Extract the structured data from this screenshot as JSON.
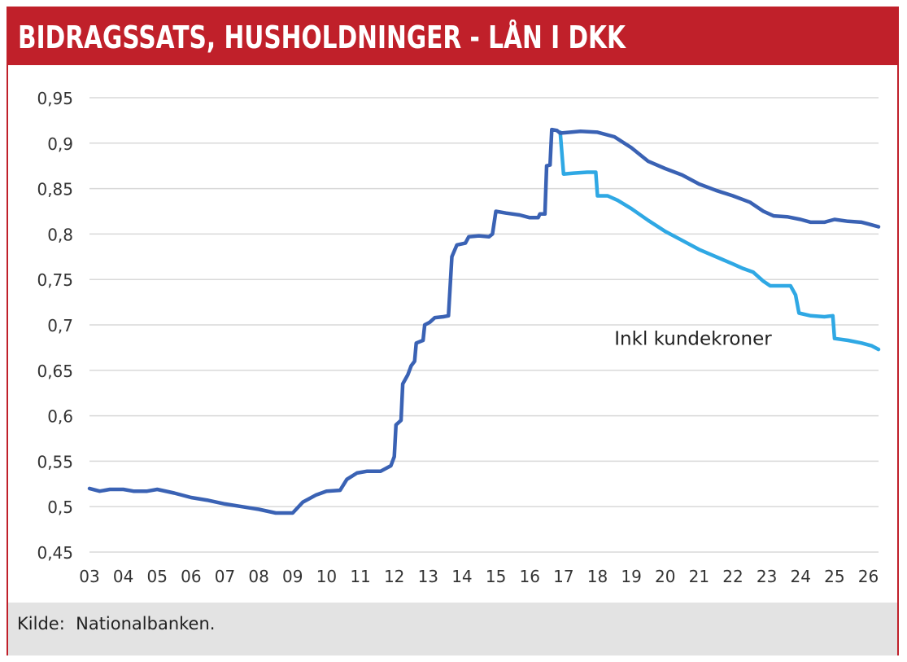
{
  "header": {
    "title": "BIDRAGSSATS, HUSHOLDNINGER - LÅN I DKK"
  },
  "footer": {
    "source": "Kilde:  Nationalbanken."
  },
  "colors": {
    "brand_red": "#c0202a",
    "series_dark": "#3a62b4",
    "series_light": "#2fa8e4",
    "grid": "#d9d9d9"
  },
  "chart_data": {
    "type": "line",
    "title": "BIDRAGSSATS, HUSHOLDNINGER - LÅN I DKK",
    "xlabel": "",
    "ylabel": "",
    "ylim": [
      0.45,
      0.95
    ],
    "xlim": [
      2003,
      2026.3
    ],
    "grid": true,
    "legend": "none",
    "y_ticks": [
      "0,45",
      "0,5",
      "0,55",
      "0,6",
      "0,65",
      "0,7",
      "0,75",
      "0,8",
      "0,85",
      "0,9",
      "0,95"
    ],
    "y_tick_values": [
      0.45,
      0.5,
      0.55,
      0.6,
      0.65,
      0.7,
      0.75,
      0.8,
      0.85,
      0.9,
      0.95
    ],
    "x_ticks": [
      "03",
      "04",
      "05",
      "06",
      "07",
      "08",
      "09",
      "10",
      "11",
      "12",
      "13",
      "14",
      "15",
      "16",
      "17",
      "18",
      "19",
      "20",
      "21",
      "22",
      "23",
      "24",
      "25",
      "26"
    ],
    "x_tick_values": [
      2003,
      2004,
      2005,
      2006,
      2007,
      2008,
      2009,
      2010,
      2011,
      2012,
      2013,
      2014,
      2015,
      2016,
      2017,
      2018,
      2019,
      2020,
      2021,
      2022,
      2023,
      2024,
      2025,
      2026
    ],
    "annotations": [
      {
        "text": "Inkl kundekroner",
        "x": 2018.5,
        "y": 0.685
      }
    ],
    "series": [
      {
        "name": "",
        "points": [
          [
            2003.0,
            0.52
          ],
          [
            2003.3,
            0.517
          ],
          [
            2003.6,
            0.519
          ],
          [
            2004.0,
            0.519
          ],
          [
            2004.3,
            0.517
          ],
          [
            2004.7,
            0.517
          ],
          [
            2005.0,
            0.519
          ],
          [
            2005.5,
            0.515
          ],
          [
            2006.0,
            0.51
          ],
          [
            2006.5,
            0.507
          ],
          [
            2007.0,
            0.503
          ],
          [
            2007.5,
            0.5
          ],
          [
            2008.0,
            0.497
          ],
          [
            2008.5,
            0.493
          ],
          [
            2009.0,
            0.493
          ],
          [
            2009.3,
            0.505
          ],
          [
            2009.7,
            0.513
          ],
          [
            2010.0,
            0.517
          ],
          [
            2010.4,
            0.518
          ],
          [
            2010.6,
            0.53
          ],
          [
            2010.9,
            0.537
          ],
          [
            2011.2,
            0.539
          ],
          [
            2011.6,
            0.539
          ],
          [
            2011.9,
            0.545
          ],
          [
            2012.0,
            0.555
          ],
          [
            2012.05,
            0.59
          ],
          [
            2012.2,
            0.595
          ],
          [
            2012.25,
            0.635
          ],
          [
            2012.4,
            0.645
          ],
          [
            2012.5,
            0.655
          ],
          [
            2012.6,
            0.66
          ],
          [
            2012.65,
            0.68
          ],
          [
            2012.85,
            0.683
          ],
          [
            2012.9,
            0.7
          ],
          [
            2013.05,
            0.703
          ],
          [
            2013.2,
            0.708
          ],
          [
            2013.45,
            0.709
          ],
          [
            2013.6,
            0.71
          ],
          [
            2013.7,
            0.775
          ],
          [
            2013.85,
            0.788
          ],
          [
            2014.1,
            0.79
          ],
          [
            2014.2,
            0.797
          ],
          [
            2014.5,
            0.798
          ],
          [
            2014.8,
            0.797
          ],
          [
            2014.9,
            0.8
          ],
          [
            2015.0,
            0.825
          ],
          [
            2015.3,
            0.823
          ],
          [
            2015.7,
            0.821
          ],
          [
            2016.0,
            0.818
          ],
          [
            2016.25,
            0.818
          ],
          [
            2016.3,
            0.822
          ],
          [
            2016.45,
            0.822
          ],
          [
            2016.5,
            0.875
          ],
          [
            2016.6,
            0.876
          ],
          [
            2016.65,
            0.915
          ],
          [
            2016.8,
            0.914
          ],
          [
            2016.9,
            0.911
          ],
          [
            2017.2,
            0.912
          ],
          [
            2017.5,
            0.913
          ],
          [
            2018.0,
            0.912
          ],
          [
            2018.5,
            0.907
          ],
          [
            2019.0,
            0.895
          ],
          [
            2019.5,
            0.88
          ],
          [
            2020.0,
            0.872
          ],
          [
            2020.5,
            0.865
          ],
          [
            2021.0,
            0.855
          ],
          [
            2021.5,
            0.848
          ],
          [
            2022.0,
            0.842
          ],
          [
            2022.5,
            0.835
          ],
          [
            2022.9,
            0.825
          ],
          [
            2023.2,
            0.82
          ],
          [
            2023.6,
            0.819
          ],
          [
            2024.0,
            0.816
          ],
          [
            2024.3,
            0.813
          ],
          [
            2024.7,
            0.813
          ],
          [
            2025.0,
            0.816
          ],
          [
            2025.4,
            0.814
          ],
          [
            2025.8,
            0.813
          ],
          [
            2026.0,
            0.811
          ],
          [
            2026.3,
            0.808
          ]
        ]
      },
      {
        "name": "Inkl kundekroner",
        "points": [
          [
            2016.9,
            0.912
          ],
          [
            2017.0,
            0.866
          ],
          [
            2017.3,
            0.867
          ],
          [
            2017.7,
            0.868
          ],
          [
            2017.95,
            0.868
          ],
          [
            2018.0,
            0.842
          ],
          [
            2018.3,
            0.842
          ],
          [
            2018.6,
            0.837
          ],
          [
            2019.0,
            0.828
          ],
          [
            2019.5,
            0.815
          ],
          [
            2020.0,
            0.803
          ],
          [
            2020.5,
            0.793
          ],
          [
            2021.0,
            0.783
          ],
          [
            2021.5,
            0.775
          ],
          [
            2022.0,
            0.767
          ],
          [
            2022.3,
            0.762
          ],
          [
            2022.6,
            0.758
          ],
          [
            2022.9,
            0.748
          ],
          [
            2023.1,
            0.743
          ],
          [
            2023.5,
            0.743
          ],
          [
            2023.7,
            0.743
          ],
          [
            2023.85,
            0.733
          ],
          [
            2023.95,
            0.713
          ],
          [
            2024.3,
            0.71
          ],
          [
            2024.7,
            0.709
          ],
          [
            2024.95,
            0.71
          ],
          [
            2025.0,
            0.685
          ],
          [
            2025.4,
            0.683
          ],
          [
            2025.8,
            0.68
          ],
          [
            2026.1,
            0.677
          ],
          [
            2026.3,
            0.673
          ]
        ]
      }
    ]
  }
}
